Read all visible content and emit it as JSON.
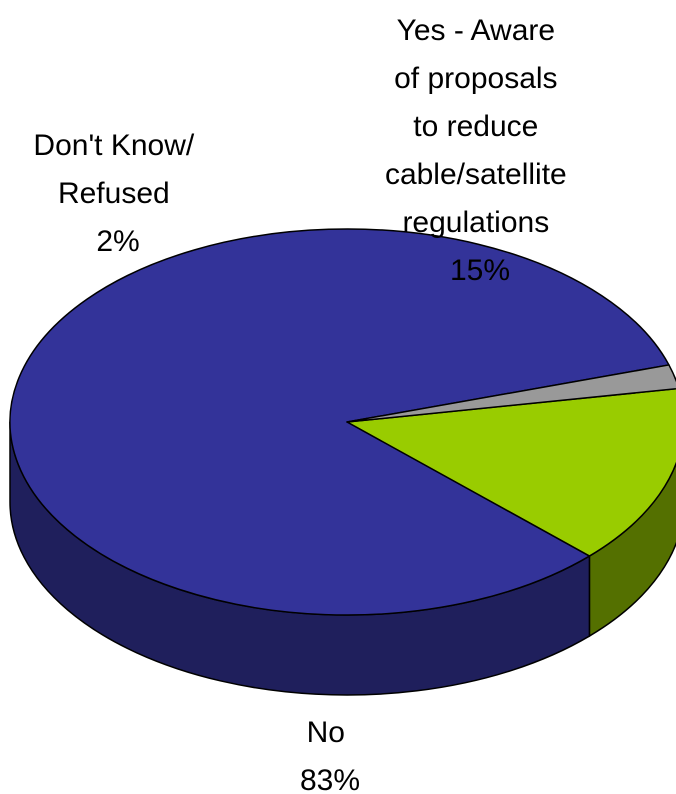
{
  "chart_data": {
    "type": "pie",
    "style": "3d",
    "title": "",
    "slices": [
      {
        "label_lines": [
          "Yes - Aware",
          "of proposals",
          "to reduce",
          "cable/satellite",
          "regulations"
        ],
        "value": 15,
        "value_text": "15%",
        "color": "#99cc00"
      },
      {
        "label_lines": [
          "No"
        ],
        "value": 83,
        "value_text": "83%",
        "color": "#333399",
        "side_color": "#1f1f5c"
      },
      {
        "label_lines": [
          "Don't Know/",
          "Refused"
        ],
        "value": 2,
        "value_text": "2%",
        "color": "#999999"
      }
    ]
  }
}
